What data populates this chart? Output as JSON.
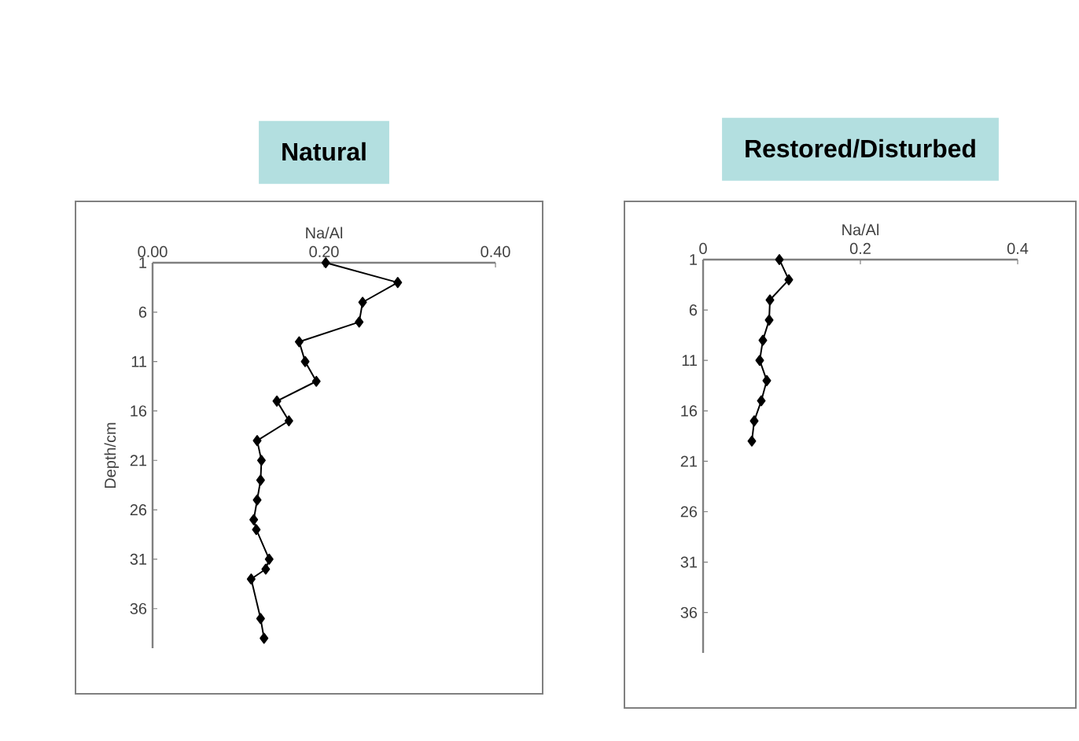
{
  "chart_data": [
    {
      "type": "line",
      "title": "Natural",
      "xlabel": "Na/Al",
      "ylabel": "Depth/cm",
      "color": "#000000",
      "marker": "diamond",
      "x": [
        0.202,
        0.286,
        0.245,
        0.241,
        0.171,
        0.178,
        0.191,
        0.145,
        0.159,
        0.122,
        0.127,
        0.126,
        0.122,
        0.118,
        0.121,
        0.136,
        0.132,
        0.115,
        0.126,
        0.13
      ],
      "values": [
        1,
        3,
        5,
        7,
        9,
        11,
        13,
        15,
        17,
        19,
        21,
        23,
        25,
        27,
        28,
        31,
        32,
        33,
        37,
        39
      ],
      "xlim": [
        0,
        0.4
      ],
      "xticks": [
        {
          "value": 0,
          "label": "0.00"
        },
        {
          "value": 0.2,
          "label": "0.20"
        },
        {
          "value": 0.4,
          "label": "0.40"
        }
      ],
      "ylim": [
        40,
        1
      ],
      "yticks": [
        1,
        6,
        11,
        16,
        21,
        26,
        31,
        36
      ]
    },
    {
      "type": "line",
      "title": "Restored/Disturbed",
      "xlabel": "Na/Al",
      "color": "#000000",
      "marker": "diamond",
      "x": [
        0.097,
        0.109,
        0.085,
        0.084,
        0.076,
        0.072,
        0.081,
        0.074,
        0.065,
        0.062
      ],
      "values": [
        1,
        3,
        5,
        7,
        9,
        11,
        13,
        15,
        17,
        19
      ],
      "xlim": [
        0,
        0.4
      ],
      "xticks": [
        0,
        0.2,
        0.4
      ],
      "ylim": [
        40,
        1
      ],
      "yticks": [
        1,
        6,
        11,
        16,
        21,
        26,
        31,
        36
      ]
    }
  ]
}
